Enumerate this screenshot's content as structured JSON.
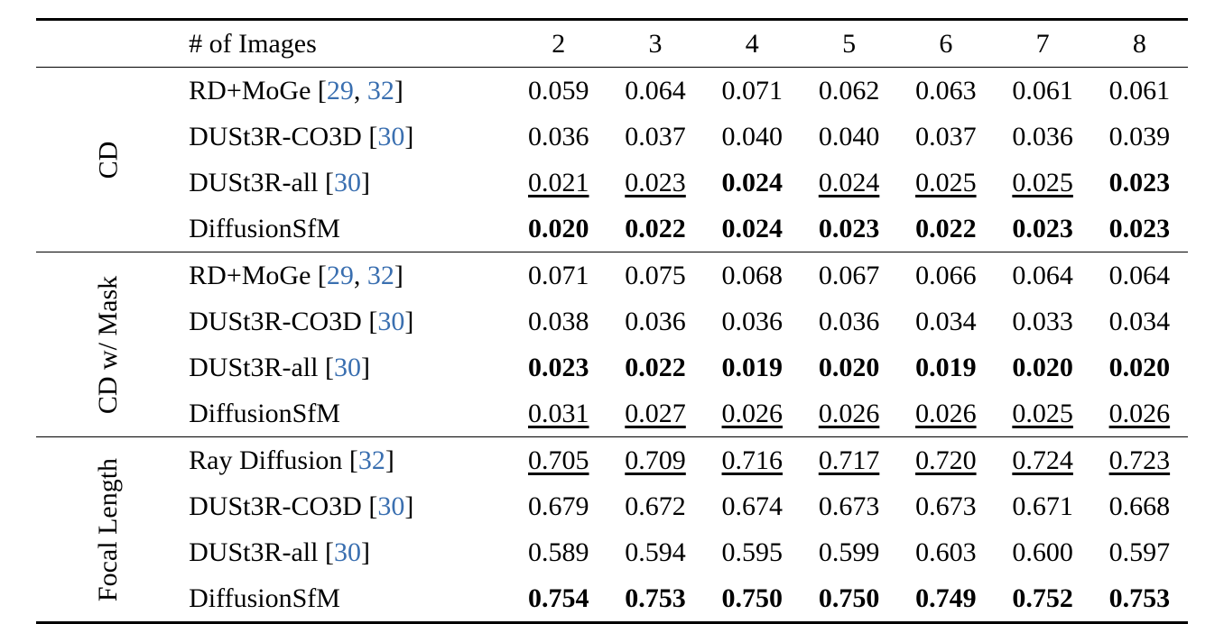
{
  "colors": {
    "text": "#000000",
    "citation": "#3a6fb0",
    "background": "#ffffff",
    "rule": "#000000"
  },
  "typography": {
    "font_family": "Times New Roman",
    "base_fontsize_pt": 22,
    "bold_weight": 700
  },
  "header": {
    "images_label": "# of Images",
    "cols": [
      "2",
      "3",
      "4",
      "5",
      "6",
      "7",
      "8"
    ]
  },
  "groups": [
    {
      "label": "CD",
      "rows": [
        {
          "method": "RD+MoGe",
          "cites": [
            "29",
            "32"
          ],
          "values": [
            "0.059",
            "0.064",
            "0.071",
            "0.062",
            "0.063",
            "0.061",
            "0.061"
          ],
          "styles": [
            "",
            "",
            "",
            "",
            "",
            "",
            ""
          ]
        },
        {
          "method": "DUSt3R-CO3D",
          "cites": [
            "30"
          ],
          "values": [
            "0.036",
            "0.037",
            "0.040",
            "0.040",
            "0.037",
            "0.036",
            "0.039"
          ],
          "styles": [
            "",
            "",
            "",
            "",
            "",
            "",
            ""
          ]
        },
        {
          "method": "DUSt3R-all",
          "cites": [
            "30"
          ],
          "values": [
            "0.021",
            "0.023",
            "0.024",
            "0.024",
            "0.025",
            "0.025",
            "0.023"
          ],
          "styles": [
            "uline",
            "uline",
            "bold",
            "uline",
            "uline",
            "uline",
            "bold"
          ]
        },
        {
          "method": "DiffusionSfM",
          "cites": [],
          "values": [
            "0.020",
            "0.022",
            "0.024",
            "0.023",
            "0.022",
            "0.023",
            "0.023"
          ],
          "styles": [
            "bold",
            "bold",
            "bold",
            "bold",
            "bold",
            "bold",
            "bold"
          ]
        }
      ]
    },
    {
      "label": "CD w/ Mask",
      "rows": [
        {
          "method": "RD+MoGe",
          "cites": [
            "29",
            "32"
          ],
          "values": [
            "0.071",
            "0.075",
            "0.068",
            "0.067",
            "0.066",
            "0.064",
            "0.064"
          ],
          "styles": [
            "",
            "",
            "",
            "",
            "",
            "",
            ""
          ]
        },
        {
          "method": "DUSt3R-CO3D",
          "cites": [
            "30"
          ],
          "values": [
            "0.038",
            "0.036",
            "0.036",
            "0.036",
            "0.034",
            "0.033",
            "0.034"
          ],
          "styles": [
            "",
            "",
            "",
            "",
            "",
            "",
            ""
          ]
        },
        {
          "method": "DUSt3R-all",
          "cites": [
            "30"
          ],
          "values": [
            "0.023",
            "0.022",
            "0.019",
            "0.020",
            "0.019",
            "0.020",
            "0.020"
          ],
          "styles": [
            "bold",
            "bold",
            "bold",
            "bold",
            "bold",
            "bold",
            "bold"
          ]
        },
        {
          "method": "DiffusionSfM",
          "cites": [],
          "values": [
            "0.031",
            "0.027",
            "0.026",
            "0.026",
            "0.026",
            "0.025",
            "0.026"
          ],
          "styles": [
            "uline",
            "uline",
            "uline",
            "uline",
            "uline",
            "uline",
            "uline"
          ]
        }
      ]
    },
    {
      "label": "Focal Length",
      "rows": [
        {
          "method": "Ray Diffusion",
          "cites": [
            "32"
          ],
          "values": [
            "0.705",
            "0.709",
            "0.716",
            "0.717",
            "0.720",
            "0.724",
            "0.723"
          ],
          "styles": [
            "uline",
            "uline",
            "uline",
            "uline",
            "uline",
            "uline",
            "uline"
          ]
        },
        {
          "method": "DUSt3R-CO3D",
          "cites": [
            "30"
          ],
          "values": [
            "0.679",
            "0.672",
            "0.674",
            "0.673",
            "0.673",
            "0.671",
            "0.668"
          ],
          "styles": [
            "",
            "",
            "",
            "",
            "",
            "",
            ""
          ]
        },
        {
          "method": "DUSt3R-all",
          "cites": [
            "30"
          ],
          "values": [
            "0.589",
            "0.594",
            "0.595",
            "0.599",
            "0.603",
            "0.600",
            "0.597"
          ],
          "styles": [
            "",
            "",
            "",
            "",
            "",
            "",
            ""
          ]
        },
        {
          "method": "DiffusionSfM",
          "cites": [],
          "values": [
            "0.754",
            "0.753",
            "0.750",
            "0.750",
            "0.749",
            "0.752",
            "0.753"
          ],
          "styles": [
            "bold",
            "bold",
            "bold",
            "bold",
            "bold",
            "bold",
            "bold"
          ]
        }
      ]
    }
  ]
}
